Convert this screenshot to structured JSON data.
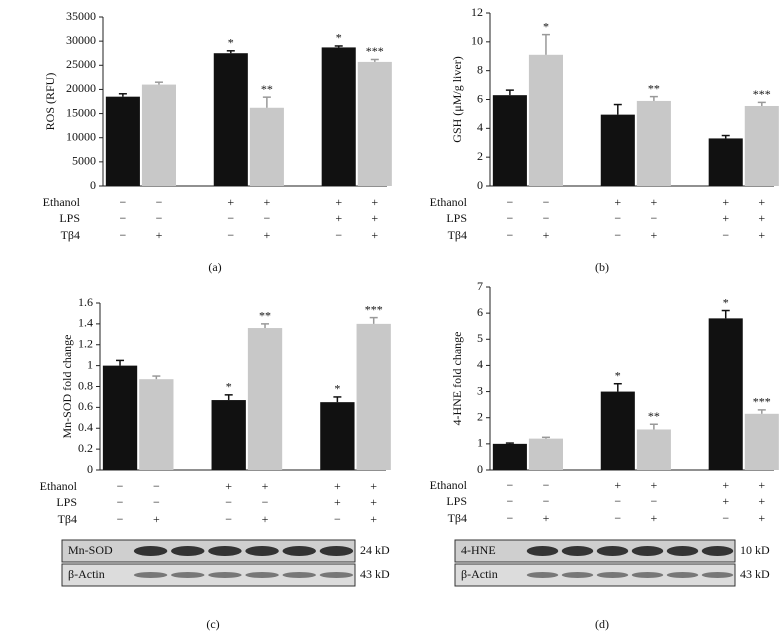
{
  "chart_data": [
    {
      "type": "bar",
      "panel": "(a)",
      "ylabel": "ROS (RFU)",
      "ylim": [
        0,
        35000
      ],
      "yticks": [
        0,
        5000,
        10000,
        15000,
        20000,
        25000,
        30000,
        35000
      ],
      "values": [
        18500,
        21000,
        27500,
        16200,
        28700,
        25700
      ],
      "errors": [
        600,
        500,
        500,
        2200,
        300,
        500
      ],
      "colors": [
        "#111111",
        "#c8c8c8",
        "#111111",
        "#c8c8c8",
        "#111111",
        "#c8c8c8"
      ],
      "annotations": [
        null,
        null,
        "*",
        "**",
        "*",
        "***"
      ],
      "treatments": [
        {
          "name": "Ethanol",
          "signs": [
            "−",
            "−",
            "+",
            "+",
            "+",
            "+"
          ]
        },
        {
          "name": "LPS",
          "signs": [
            "−",
            "−",
            "−",
            "−",
            "+",
            "+"
          ]
        },
        {
          "name": "Tβ4",
          "signs": [
            "−",
            "+",
            "−",
            "+",
            "−",
            "+"
          ]
        }
      ]
    },
    {
      "type": "bar",
      "panel": "(b)",
      "ylabel": "GSH (μM/g liver)",
      "ylim": [
        0,
        12
      ],
      "yticks": [
        0,
        2,
        4,
        6,
        8,
        10,
        12
      ],
      "values": [
        6.3,
        9.1,
        4.95,
        5.9,
        3.3,
        5.55
      ],
      "errors": [
        0.35,
        1.4,
        0.7,
        0.3,
        0.2,
        0.25
      ],
      "colors": [
        "#111111",
        "#c8c8c8",
        "#111111",
        "#c8c8c8",
        "#111111",
        "#c8c8c8"
      ],
      "annotations": [
        null,
        "*",
        null,
        "**",
        null,
        "***"
      ],
      "treatments": [
        {
          "name": "Ethanol",
          "signs": [
            "−",
            "−",
            "+",
            "+",
            "+",
            "+"
          ]
        },
        {
          "name": "LPS",
          "signs": [
            "−",
            "−",
            "−",
            "−",
            "+",
            "+"
          ]
        },
        {
          "name": "Tβ4",
          "signs": [
            "−",
            "+",
            "−",
            "+",
            "−",
            "+"
          ]
        }
      ]
    },
    {
      "type": "bar",
      "panel": "(c)",
      "ylabel": "Mn-SOD fold change",
      "ylim": [
        0,
        1.6
      ],
      "yticks": [
        0,
        0.2,
        0.4,
        0.6,
        0.8,
        1,
        1.2,
        1.4,
        1.6
      ],
      "values": [
        1.0,
        0.87,
        0.67,
        1.36,
        0.65,
        1.4
      ],
      "errors": [
        0.05,
        0.03,
        0.05,
        0.04,
        0.05,
        0.06
      ],
      "colors": [
        "#111111",
        "#c8c8c8",
        "#111111",
        "#c8c8c8",
        "#111111",
        "#c8c8c8"
      ],
      "annotations": [
        null,
        null,
        "*",
        "**",
        "*",
        "***"
      ],
      "treatments": [
        {
          "name": "Ethanol",
          "signs": [
            "−",
            "−",
            "+",
            "+",
            "+",
            "+"
          ]
        },
        {
          "name": "LPS",
          "signs": [
            "−",
            "−",
            "−",
            "−",
            "+",
            "+"
          ]
        },
        {
          "name": "Tβ4",
          "signs": [
            "−",
            "+",
            "−",
            "+",
            "−",
            "+"
          ]
        }
      ],
      "blot": [
        {
          "label": "Mn-SOD",
          "size": "24 kD"
        },
        {
          "label": "β-Actin",
          "size": "43 kD"
        }
      ]
    },
    {
      "type": "bar",
      "panel": "(d)",
      "ylabel": "4-HNE fold change",
      "ylim": [
        0,
        7
      ],
      "yticks": [
        0,
        1,
        2,
        3,
        4,
        5,
        6,
        7
      ],
      "values": [
        1.0,
        1.2,
        3.0,
        1.55,
        5.8,
        2.15
      ],
      "errors": [
        0.03,
        0.05,
        0.3,
        0.2,
        0.3,
        0.15
      ],
      "colors": [
        "#111111",
        "#c8c8c8",
        "#111111",
        "#c8c8c8",
        "#111111",
        "#c8c8c8"
      ],
      "annotations": [
        null,
        null,
        "*",
        "**",
        "*",
        "***"
      ],
      "treatments": [
        {
          "name": "Ethanol",
          "signs": [
            "−",
            "−",
            "+",
            "+",
            "+",
            "+"
          ]
        },
        {
          "name": "LPS",
          "signs": [
            "−",
            "−",
            "−",
            "−",
            "+",
            "+"
          ]
        },
        {
          "name": "Tβ4",
          "signs": [
            "−",
            "+",
            "−",
            "+",
            "−",
            "+"
          ]
        }
      ],
      "blot": [
        {
          "label": "4-HNE",
          "size": "10 kD"
        },
        {
          "label": "β-Actin",
          "size": "43 kD"
        }
      ]
    }
  ]
}
